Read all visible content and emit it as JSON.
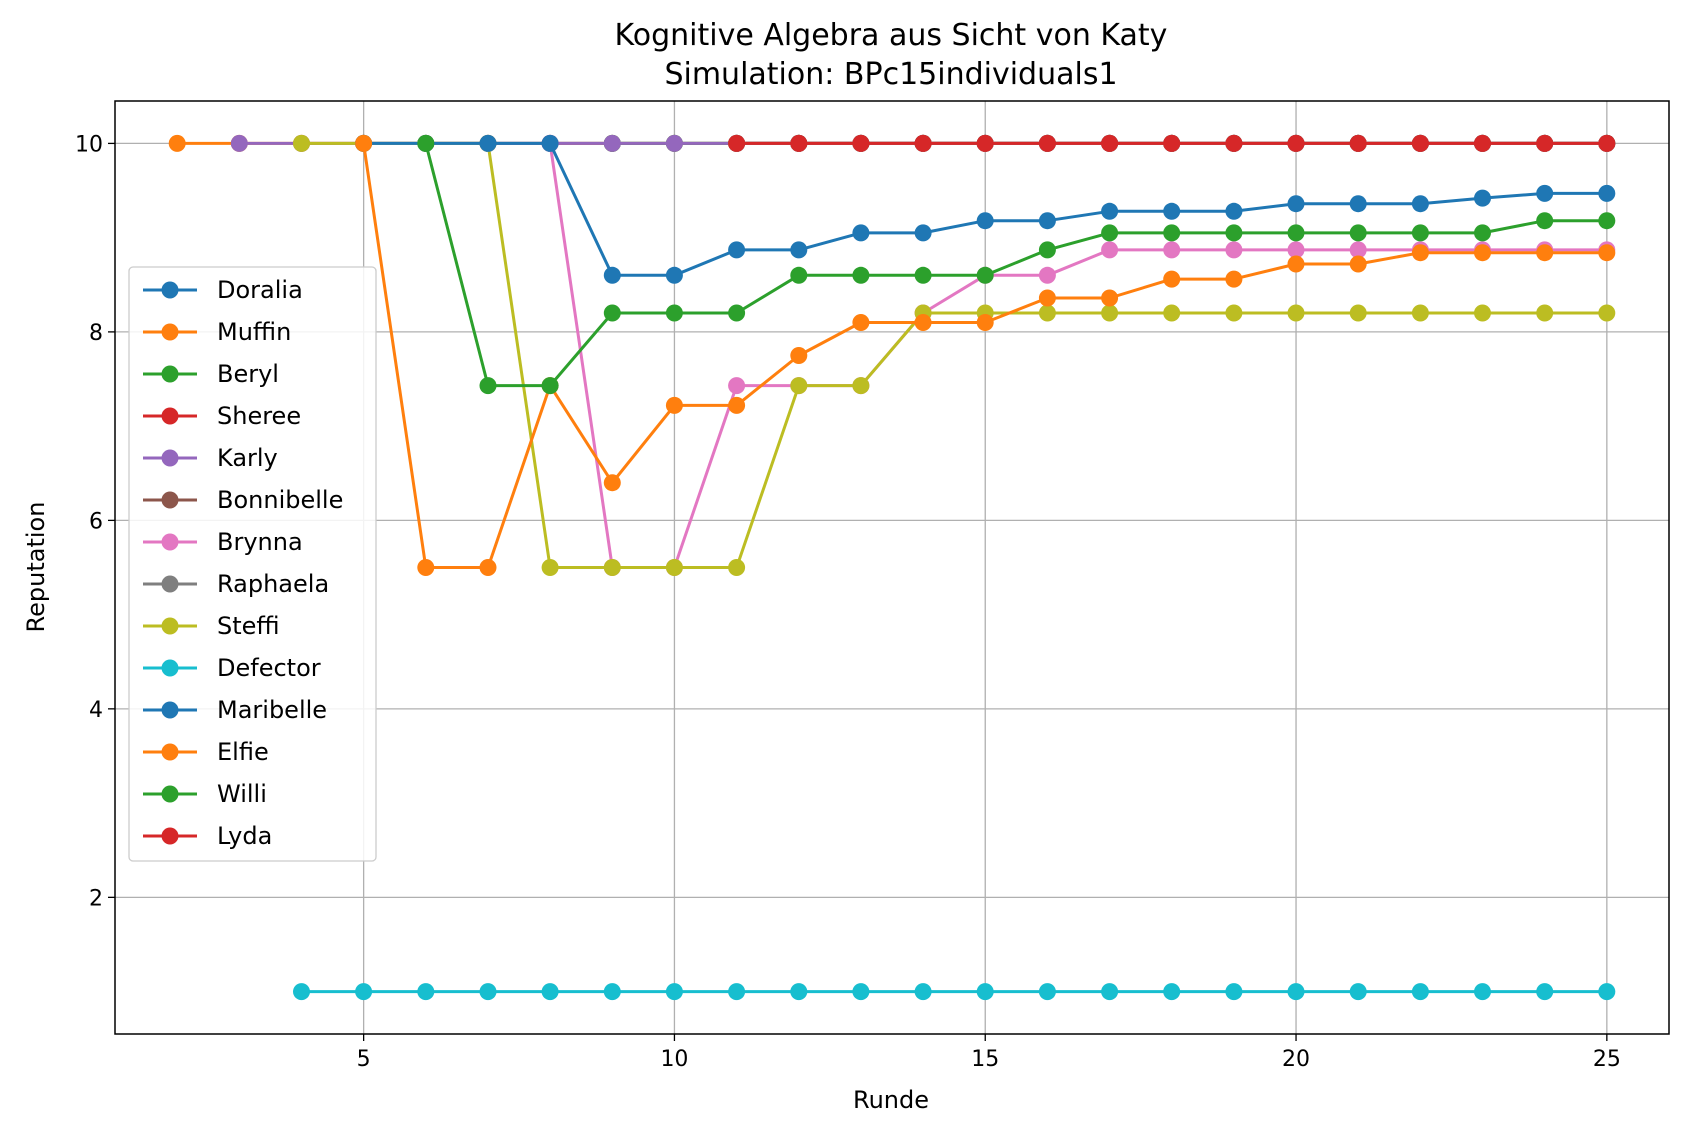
{
  "chart_data": {
    "type": "line",
    "title": "Kognitive Algebra aus Sicht von Katy",
    "subtitle": "Simulation: BPc15individuals1",
    "xlabel": "Runde",
    "ylabel": "Reputation",
    "xlim": [
      1,
      26
    ],
    "ylim": [
      0.55,
      10.45
    ],
    "xticks": [
      5,
      10,
      15,
      20,
      25
    ],
    "yticks": [
      2,
      4,
      6,
      8,
      10
    ],
    "grid": true,
    "legend_position": "center-left",
    "series": [
      {
        "name": "Doralia",
        "color": "#1f77b4",
        "x": [
          5,
          6,
          7,
          8,
          9,
          10,
          11,
          12,
          13,
          14,
          15,
          16,
          17,
          18,
          19,
          20,
          21,
          22,
          23,
          24,
          25
        ],
        "y": [
          10,
          10,
          10,
          10,
          10,
          10,
          10,
          10,
          10,
          10,
          10,
          10,
          10,
          10,
          10,
          10,
          10,
          10,
          10,
          10,
          10
        ]
      },
      {
        "name": "Muffin",
        "color": "#ff7f0e",
        "x": [
          2,
          3,
          4,
          5,
          6,
          7,
          8,
          9,
          10,
          11,
          12,
          13,
          14,
          15,
          16,
          17,
          18,
          19,
          20,
          21,
          22,
          23,
          24,
          25
        ],
        "y": [
          10,
          10,
          10,
          10,
          10,
          10,
          10,
          10,
          10,
          10,
          10,
          10,
          10,
          10,
          10,
          10,
          10,
          10,
          10,
          10,
          10,
          10,
          10,
          10
        ]
      },
      {
        "name": "Beryl",
        "color": "#2ca02c",
        "x": [
          9,
          10,
          11,
          12,
          13,
          14,
          15,
          16,
          17,
          18,
          19,
          20,
          21,
          22,
          23,
          24,
          25
        ],
        "y": [
          10,
          10,
          10,
          10,
          10,
          10,
          10,
          10,
          10,
          10,
          10,
          10,
          10,
          10,
          10,
          10,
          10
        ]
      },
      {
        "name": "Sheree",
        "color": "#d62728",
        "x": [
          11,
          12,
          13,
          14,
          15,
          16,
          17,
          18,
          19,
          20,
          21,
          22,
          23,
          24,
          25
        ],
        "y": [
          10,
          10,
          10,
          10,
          10,
          10,
          10,
          10,
          10,
          10,
          10,
          10,
          10,
          10,
          10
        ]
      },
      {
        "name": "Karly",
        "color": "#9467bd",
        "x": [
          3,
          4,
          5,
          6,
          7,
          8,
          9,
          10,
          11,
          12,
          13,
          14,
          15,
          16,
          17,
          18,
          19,
          20,
          21,
          22,
          23,
          24,
          25
        ],
        "y": [
          10,
          10,
          10,
          10,
          10,
          10,
          10,
          10,
          10,
          10,
          10,
          10,
          10,
          10,
          10,
          10,
          10,
          10,
          10,
          10,
          10,
          10,
          10
        ]
      },
      {
        "name": "Bonnibelle",
        "color": "#8c564b",
        "x": [
          11,
          12,
          13,
          14,
          15,
          16,
          17,
          18,
          19,
          20,
          21,
          22,
          23,
          24,
          25
        ],
        "y": [
          10,
          10,
          10,
          10,
          10,
          10,
          10,
          10,
          10,
          10,
          10,
          10,
          10,
          10,
          10
        ]
      },
      {
        "name": "Brynna",
        "color": "#e377c2",
        "x": [
          8,
          9,
          10,
          11,
          12,
          13,
          14,
          15,
          16,
          17,
          18,
          19,
          20,
          21,
          22,
          23,
          24,
          25
        ],
        "y": [
          10,
          5.5,
          5.5,
          7.43,
          7.43,
          7.43,
          8.2,
          8.6,
          8.6,
          8.87,
          8.87,
          8.87,
          8.87,
          8.87,
          8.87,
          8.87,
          8.87,
          8.87
        ]
      },
      {
        "name": "Raphaela",
        "color": "#7f7f7f",
        "x": [
          11,
          12,
          13,
          14,
          15,
          16,
          17,
          18,
          19,
          20,
          21,
          22,
          23,
          24,
          25
        ],
        "y": [
          10,
          10,
          10,
          10,
          10,
          10,
          10,
          10,
          10,
          10,
          10,
          10,
          10,
          10,
          10
        ]
      },
      {
        "name": "Steffi",
        "color": "#bcbd22",
        "x": [
          4,
          5,
          6,
          7,
          8,
          9,
          10,
          11,
          12,
          13,
          14,
          15,
          16,
          17,
          18,
          19,
          20,
          21,
          22,
          23,
          24,
          25
        ],
        "y": [
          10,
          10,
          10,
          10,
          5.5,
          5.5,
          5.5,
          5.5,
          7.43,
          7.43,
          8.2,
          8.2,
          8.2,
          8.2,
          8.2,
          8.2,
          8.2,
          8.2,
          8.2,
          8.2,
          8.2,
          8.2
        ]
      },
      {
        "name": "Defector",
        "color": "#17becf",
        "x": [
          4,
          5,
          6,
          7,
          8,
          9,
          10,
          11,
          12,
          13,
          14,
          15,
          16,
          17,
          18,
          19,
          20,
          21,
          22,
          23,
          24,
          25
        ],
        "y": [
          1,
          1,
          1,
          1,
          1,
          1,
          1,
          1,
          1,
          1,
          1,
          1,
          1,
          1,
          1,
          1,
          1,
          1,
          1,
          1,
          1,
          1
        ]
      },
      {
        "name": "Maribelle",
        "color": "#1f77b4",
        "x": [
          5,
          6,
          7,
          8,
          9,
          10,
          11,
          12,
          13,
          14,
          15,
          16,
          17,
          18,
          19,
          20,
          21,
          22,
          23,
          24,
          25
        ],
        "y": [
          10,
          10,
          10,
          10,
          8.6,
          8.6,
          8.87,
          8.87,
          9.05,
          9.05,
          9.18,
          9.18,
          9.28,
          9.28,
          9.28,
          9.36,
          9.36,
          9.36,
          9.42,
          9.47,
          9.47
        ]
      },
      {
        "name": "Elfie",
        "color": "#ff7f0e",
        "x": [
          5,
          6,
          7,
          8,
          9,
          10,
          11,
          12,
          13,
          14,
          15,
          16,
          17,
          18,
          19,
          20,
          21,
          22,
          23,
          24,
          25
        ],
        "y": [
          10,
          5.5,
          5.5,
          7.43,
          6.4,
          7.22,
          7.22,
          7.75,
          8.1,
          8.1,
          8.1,
          8.36,
          8.36,
          8.56,
          8.56,
          8.72,
          8.72,
          8.84,
          8.84,
          8.84,
          8.84
        ]
      },
      {
        "name": "Willi",
        "color": "#2ca02c",
        "x": [
          6,
          7,
          8,
          9,
          10,
          11,
          12,
          13,
          14,
          15,
          16,
          17,
          18,
          19,
          20,
          21,
          22,
          23,
          24,
          25
        ],
        "y": [
          10,
          7.43,
          7.43,
          8.2,
          8.2,
          8.2,
          8.6,
          8.6,
          8.6,
          8.6,
          8.87,
          9.05,
          9.05,
          9.05,
          9.05,
          9.05,
          9.05,
          9.05,
          9.18,
          9.18
        ]
      },
      {
        "name": "Lyda",
        "color": "#d62728",
        "x": [
          11,
          12,
          13,
          14,
          15,
          16,
          17,
          18,
          19,
          20,
          21,
          22,
          23,
          24,
          25
        ],
        "y": [
          10,
          10,
          10,
          10,
          10,
          10,
          10,
          10,
          10,
          10,
          10,
          10,
          10,
          10,
          10
        ]
      }
    ]
  }
}
